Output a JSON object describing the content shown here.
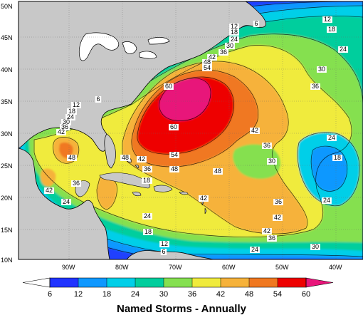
{
  "title": "Named Storms - Annually",
  "lat_labels": [
    "50N",
    "45N",
    "40N",
    "35N",
    "30N",
    "25N",
    "20N",
    "15N",
    "10N"
  ],
  "lon_labels": [
    "90W",
    "80W",
    "70W",
    "60W",
    "50W",
    "40W"
  ],
  "colorbar": {
    "ticks": [
      "6",
      "12",
      "18",
      "24",
      "30",
      "36",
      "42",
      "48",
      "54",
      "60"
    ],
    "colors": [
      "#ffffff",
      "#2033ff",
      "#0f98ff",
      "#00cfe8",
      "#00ce9d",
      "#85e050",
      "#f0eb3c",
      "#f6b23a",
      "#f07820",
      "#ee0000",
      "#e8157a"
    ]
  },
  "contour_labels": [
    {
      "text": "12"
    },
    {
      "text": "18"
    },
    {
      "text": "12"
    },
    {
      "text": "18"
    },
    {
      "text": "24"
    },
    {
      "text": "6"
    },
    {
      "text": "24"
    },
    {
      "text": "30"
    },
    {
      "text": "36"
    },
    {
      "text": "42"
    },
    {
      "text": "48"
    },
    {
      "text": "54"
    },
    {
      "text": "30"
    },
    {
      "text": "36"
    },
    {
      "text": "60"
    },
    {
      "text": "60"
    },
    {
      "text": "6"
    },
    {
      "text": "12"
    },
    {
      "text": "18"
    },
    {
      "text": "24"
    },
    {
      "text": "30"
    },
    {
      "text": "36"
    },
    {
      "text": "42"
    },
    {
      "text": "48"
    },
    {
      "text": "42"
    },
    {
      "text": "36"
    },
    {
      "text": "24"
    },
    {
      "text": "48"
    },
    {
      "text": "42"
    },
    {
      "text": "54"
    },
    {
      "text": "30"
    },
    {
      "text": "18"
    },
    {
      "text": "48"
    },
    {
      "text": "36"
    },
    {
      "text": "48"
    },
    {
      "text": "42"
    },
    {
      "text": "30"
    },
    {
      "text": "36"
    },
    {
      "text": "30"
    },
    {
      "text": "18"
    },
    {
      "text": "24"
    },
    {
      "text": "42"
    },
    {
      "text": "24"
    },
    {
      "text": "24"
    },
    {
      "text": "36"
    },
    {
      "text": "42"
    },
    {
      "text": "18"
    },
    {
      "text": "42"
    },
    {
      "text": "36"
    },
    {
      "text": "12"
    },
    {
      "text": "6"
    },
    {
      "text": "24"
    },
    {
      "text": "30"
    }
  ]
}
